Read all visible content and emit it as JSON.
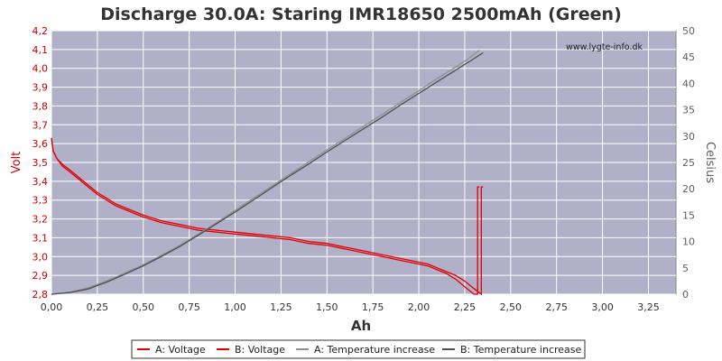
{
  "chart_data": {
    "type": "line",
    "title": "Discharge 30.0A: Staring IMR18650 2500mAh (Green)",
    "watermark": "www.lygte-info.dk",
    "xlabel": "Ah",
    "ylabel_left": "Volt",
    "ylabel_right": "Celsius",
    "xlim": [
      0,
      3.4
    ],
    "ylim_left": [
      2.8,
      4.2
    ],
    "ylim_right": [
      0,
      50
    ],
    "grid": true,
    "legend_position": "bottom",
    "colors": {
      "plot_bg": "#b0b0c8",
      "grid": "#ffffff",
      "voltage": "#e00000",
      "temperature_a": "#909090",
      "temperature_b": "#505050",
      "left_axis_text": "#cc0000",
      "right_axis_text": "#606060"
    },
    "x_ticks": [
      "0,00",
      "0,25",
      "0,50",
      "0,75",
      "1,00",
      "1,25",
      "1,50",
      "1,75",
      "2,00",
      "2,25",
      "2,50",
      "2,75",
      "3,00",
      "3,25"
    ],
    "y_ticks_left": [
      "2,8",
      "2,9",
      "3,0",
      "3,1",
      "3,2",
      "3,3",
      "3,4",
      "3,5",
      "3,6",
      "3,7",
      "3,8",
      "3,9",
      "4,0",
      "4,1",
      "4,2"
    ],
    "y_ticks_right": [
      "0",
      "5",
      "10",
      "15",
      "20",
      "25",
      "30",
      "35",
      "40",
      "45",
      "50"
    ],
    "series": [
      {
        "name": "A: Voltage",
        "axis": "left",
        "color": "#e00000",
        "x": [
          0.0,
          0.01,
          0.03,
          0.06,
          0.1,
          0.15,
          0.2,
          0.25,
          0.3,
          0.35,
          0.4,
          0.5,
          0.6,
          0.7,
          0.8,
          0.9,
          1.0,
          1.1,
          1.2,
          1.3,
          1.4,
          1.5,
          1.6,
          1.7,
          1.8,
          1.9,
          2.0,
          2.05,
          2.1,
          2.15,
          2.2,
          2.25,
          2.3,
          2.32,
          2.32,
          2.33
        ],
        "y": [
          3.63,
          3.56,
          3.52,
          3.48,
          3.45,
          3.41,
          3.37,
          3.33,
          3.3,
          3.27,
          3.25,
          3.21,
          3.18,
          3.16,
          3.14,
          3.13,
          3.12,
          3.11,
          3.1,
          3.09,
          3.07,
          3.06,
          3.04,
          3.02,
          3.0,
          2.98,
          2.96,
          2.95,
          2.93,
          2.91,
          2.88,
          2.84,
          2.8,
          2.8,
          3.37,
          3.37
        ]
      },
      {
        "name": "B: Voltage",
        "axis": "left",
        "color": "#e00000",
        "x": [
          0.0,
          0.01,
          0.03,
          0.06,
          0.1,
          0.15,
          0.2,
          0.25,
          0.3,
          0.35,
          0.4,
          0.5,
          0.6,
          0.7,
          0.8,
          0.9,
          1.0,
          1.1,
          1.2,
          1.3,
          1.4,
          1.5,
          1.6,
          1.7,
          1.8,
          1.9,
          2.0,
          2.05,
          2.1,
          2.15,
          2.2,
          2.25,
          2.3,
          2.34,
          2.34,
          2.35
        ],
        "y": [
          3.63,
          3.56,
          3.52,
          3.49,
          3.46,
          3.42,
          3.38,
          3.34,
          3.31,
          3.28,
          3.26,
          3.22,
          3.19,
          3.17,
          3.15,
          3.14,
          3.13,
          3.12,
          3.11,
          3.1,
          3.08,
          3.07,
          3.05,
          3.03,
          3.01,
          2.99,
          2.97,
          2.96,
          2.94,
          2.92,
          2.9,
          2.87,
          2.83,
          2.8,
          3.37,
          3.37
        ]
      },
      {
        "name": "A: Temperature increase",
        "axis": "right",
        "color": "#909090",
        "x": [
          0.0,
          0.1,
          0.2,
          0.3,
          0.4,
          0.5,
          0.6,
          0.7,
          0.8,
          0.9,
          1.0,
          1.1,
          1.2,
          1.3,
          1.4,
          1.5,
          1.6,
          1.7,
          1.8,
          1.9,
          2.0,
          2.1,
          2.2,
          2.27,
          2.33
        ],
        "y": [
          0.0,
          0.4,
          1.2,
          2.5,
          4.0,
          5.6,
          7.4,
          9.3,
          11.4,
          13.6,
          15.9,
          18.2,
          20.5,
          22.8,
          25.1,
          27.4,
          29.6,
          31.9,
          34.1,
          36.4,
          38.6,
          40.9,
          43.1,
          44.7,
          46.3
        ]
      },
      {
        "name": "B: Temperature increase",
        "axis": "right",
        "color": "#505050",
        "x": [
          0.0,
          0.1,
          0.2,
          0.3,
          0.4,
          0.5,
          0.6,
          0.7,
          0.8,
          0.9,
          1.0,
          1.1,
          1.2,
          1.3,
          1.4,
          1.5,
          1.6,
          1.7,
          1.8,
          1.9,
          2.0,
          2.1,
          2.2,
          2.3,
          2.35
        ],
        "y": [
          0.0,
          0.3,
          1.0,
          2.3,
          3.8,
          5.4,
          7.2,
          9.1,
          11.2,
          13.4,
          15.6,
          17.9,
          20.2,
          22.5,
          24.7,
          27.0,
          29.2,
          31.4,
          33.6,
          35.9,
          38.1,
          40.3,
          42.5,
          44.7,
          45.8
        ]
      }
    ]
  }
}
